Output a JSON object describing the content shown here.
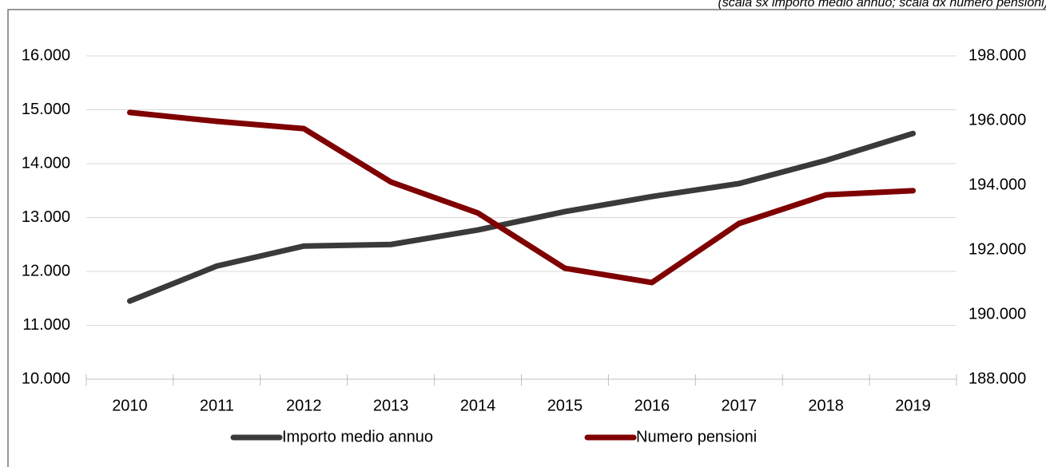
{
  "chart_data": {
    "type": "line",
    "subtitle": "(scala sx importo medio annuo; scala dx numero pensioni)",
    "categories": [
      "2010",
      "2011",
      "2012",
      "2013",
      "2014",
      "2015",
      "2016",
      "2017",
      "2018",
      "2019"
    ],
    "series": [
      {
        "name": "Importo medio annuo",
        "color": "#3a3a3a",
        "values": [
          11450,
          12100,
          12470,
          12500,
          12770,
          13110,
          13390,
          13630,
          14060,
          14560
        ]
      },
      {
        "name": "Numero pensioni",
        "color": "#7f0000",
        "axis": "y2",
        "values": [
          196250,
          195975,
          195750,
          194100,
          193140,
          191430,
          190990,
          192815,
          193700,
          193830
        ]
      }
    ],
    "ylim": [
      10000,
      16000
    ],
    "yticks": [
      {
        "value": 10000,
        "label": "10.000"
      },
      {
        "value": 11000,
        "label": "11.000"
      },
      {
        "value": 12000,
        "label": "12.000"
      },
      {
        "value": 13000,
        "label": "13.000"
      },
      {
        "value": 14000,
        "label": "14.000"
      },
      {
        "value": 15000,
        "label": "15.000"
      },
      {
        "value": 16000,
        "label": "16.000"
      }
    ],
    "y2lim": [
      188000,
      198000
    ],
    "y2ticks": [
      {
        "value": 188000,
        "label": "188.000"
      },
      {
        "value": 190000,
        "label": "190.000"
      },
      {
        "value": 192000,
        "label": "192.000"
      },
      {
        "value": 194000,
        "label": "194.000"
      },
      {
        "value": 196000,
        "label": "196.000"
      },
      {
        "value": 198000,
        "label": "198.000"
      }
    ],
    "grid": true,
    "legend": "bottom"
  }
}
